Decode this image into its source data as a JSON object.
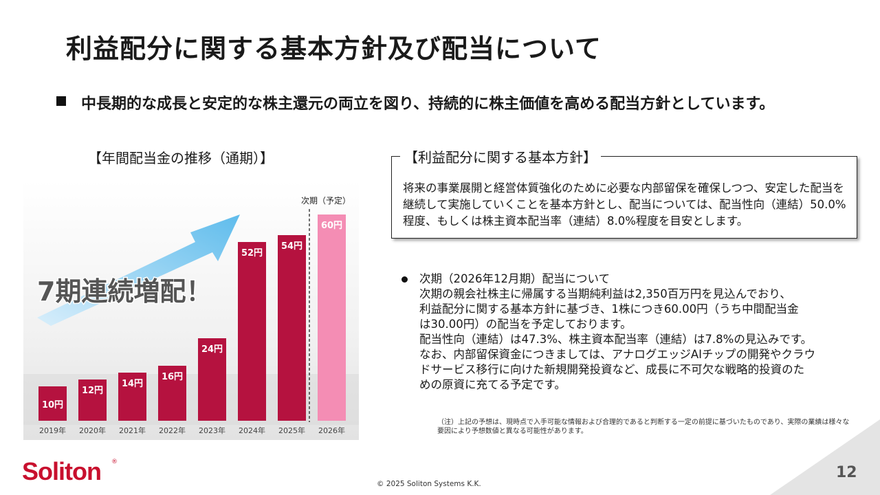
{
  "title": "利益配分に関する基本方針及び配当について",
  "lead": "中長期的な成長と安定的な株主還元の両立を図り、持続的に株主価値を高める配当方針としています。",
  "chart_section": {
    "heading": "【年間配当金の推移（通期）】",
    "banner": "7期連続増配！",
    "next_label": "次期（予定）"
  },
  "chart_data": {
    "type": "bar",
    "categories": [
      "2019年",
      "2020年",
      "2021年",
      "2022年",
      "2023年",
      "2024年",
      "2025年",
      "2026年"
    ],
    "values": [
      10,
      12,
      14,
      16,
      24,
      52,
      54,
      60
    ],
    "data_labels": [
      "10円",
      "12円",
      "14円",
      "16円",
      "24円",
      "52円",
      "54円",
      "60円"
    ],
    "forecast_index": 7,
    "colors": {
      "actual": "#b5123f",
      "forecast": "#f48db4"
    }
  },
  "policy": {
    "heading": "【利益配分に関する基本方針】",
    "text": "将来の事業展開と経営体質強化のために必要な内部留保を確保しつつ、安定した配当を継続して実施していくことを基本方針とし、配当については、配当性向（連結）50.0%程度、もしくは株主資本配当率（連結）8.0%程度を目安とします。"
  },
  "forecast": {
    "lines": [
      "次期（2026年12月期）配当について",
      "次期の親会社株主に帰属する当期純利益は2,350百万円を見込んでおり、",
      "利益配分に関する基本方針に基づき、1株につき60.00円（うち中間配当金",
      "は30.00円）の配当を予定しております。",
      "配当性向（連結）は47.3%、株主資本配当率（連結）は7.8%の見込みです。",
      "なお、内部留保資金につきましては、アナログエッジAIチップの開発やクラウ",
      "ドサービス移行に向けた新規開発投資など、成長に不可欠な戦略的投資のた",
      "めの原資に充てる予定です。"
    ]
  },
  "note": "（注）上記の予想は、現時点で入手可能な情報および合理的であると判断する一定の前提に基づいたものであり、実際の業績は様々な要因により予想数値と異なる可能性があります。",
  "footer": {
    "logo": "Soliton",
    "logo_mark": "®",
    "copyright": "© 2025 Soliton Systems K.K.",
    "page": "12"
  },
  "colors": {
    "brand": "#c8102e",
    "arrow": "#6ec3ee"
  }
}
